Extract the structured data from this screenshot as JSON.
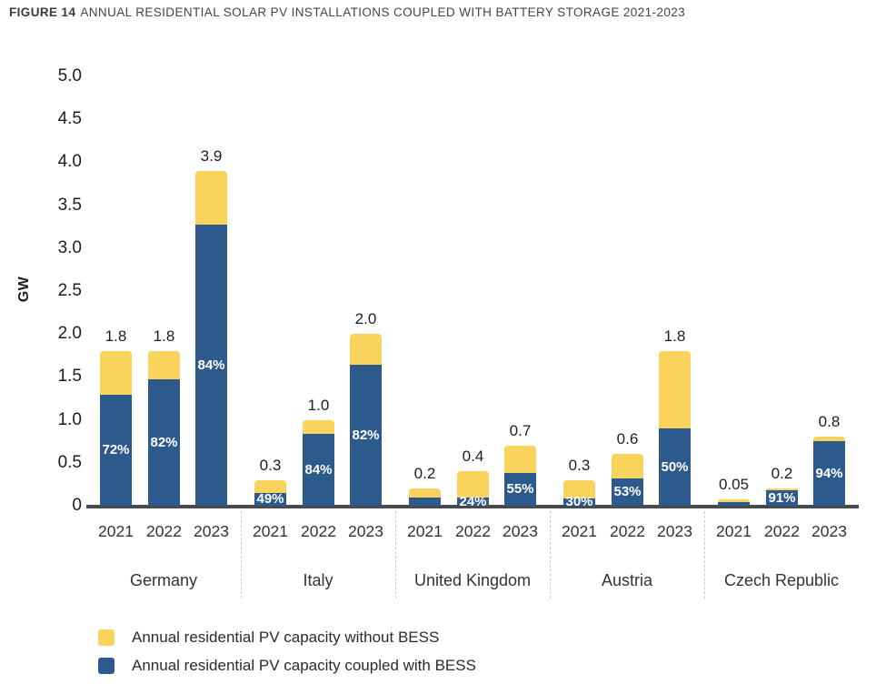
{
  "figure": {
    "label": "FIGURE 14",
    "title": "ANNUAL RESIDENTIAL SOLAR PV INSTALLATIONS COUPLED WITH BATTERY STORAGE 2021-2023"
  },
  "colors": {
    "without_bess_yellow": "#FAD35C",
    "with_bess_blue": "#2D5A8C",
    "axis_line": "#474B4F",
    "separator": "#C9CCCE",
    "tick_text": "#1D1D1B",
    "percent_text": "#FFFFFF"
  },
  "legend": {
    "items": [
      {
        "key": "without_bess",
        "label": "Annual residential PV capacity without BESS",
        "color": "#FAD35C"
      },
      {
        "key": "with_bess",
        "label": "Annual residential PV capacity coupled with BESS",
        "color": "#2D5A8C"
      }
    ]
  },
  "chart_data": {
    "type": "bar",
    "stacked": true,
    "title": "FIGURE 14 ANNUAL RESIDENTIAL SOLAR PV INSTALLATIONS COUPLED WITH BATTERY STORAGE 2021-2023",
    "ylabel": "GW",
    "unit": "GW",
    "ylim": [
      0,
      5
    ],
    "ytick_labels": [
      "5.0",
      "4.5",
      "4.0",
      "3.5",
      "3.0",
      "2.5",
      "2.0",
      "1.5",
      "1.0",
      "0.5",
      "0"
    ],
    "grid": false,
    "legend_position": "bottom-left",
    "series_order_note": "blue 'coupled with BESS' segment on bottom, yellow 'without BESS' segment on top; white % label = share coupled with BESS; number above bar = total GW",
    "groups": [
      {
        "country": "Germany",
        "bars": [
          {
            "year": "2021",
            "total_gw": 1.8,
            "total_label": "1.8",
            "coupled_pct": 72,
            "pct_label": "72%"
          },
          {
            "year": "2022",
            "total_gw": 1.8,
            "total_label": "1.8",
            "coupled_pct": 82,
            "pct_label": "82%"
          },
          {
            "year": "2023",
            "total_gw": 3.9,
            "total_label": "3.9",
            "coupled_pct": 84,
            "pct_label": "84%"
          }
        ]
      },
      {
        "country": "Italy",
        "bars": [
          {
            "year": "2021",
            "total_gw": 0.3,
            "total_label": "0.3",
            "coupled_pct": 49,
            "pct_label": "49%"
          },
          {
            "year": "2022",
            "total_gw": 1.0,
            "total_label": "1.0",
            "coupled_pct": 84,
            "pct_label": "84%"
          },
          {
            "year": "2023",
            "total_gw": 2.0,
            "total_label": "2.0",
            "coupled_pct": 82,
            "pct_label": "82%"
          }
        ]
      },
      {
        "country": "United Kingdom",
        "bars": [
          {
            "year": "2021",
            "total_gw": 0.2,
            "total_label": "0.2",
            "coupled_pct": null,
            "pct_label": "",
            "coupled_frac_visual": 0.45
          },
          {
            "year": "2022",
            "total_gw": 0.4,
            "total_label": "0.4",
            "coupled_pct": 24,
            "pct_label": "24%"
          },
          {
            "year": "2023",
            "total_gw": 0.7,
            "total_label": "0.7",
            "coupled_pct": 55,
            "pct_label": "55%"
          }
        ]
      },
      {
        "country": "Austria",
        "bars": [
          {
            "year": "2021",
            "total_gw": 0.3,
            "total_label": "0.3",
            "coupled_pct": 30,
            "pct_label": "30%"
          },
          {
            "year": "2022",
            "total_gw": 0.6,
            "total_label": "0.6",
            "coupled_pct": 53,
            "pct_label": "53%"
          },
          {
            "year": "2023",
            "total_gw": 1.8,
            "total_label": "1.8",
            "coupled_pct": 50,
            "pct_label": "50%"
          }
        ]
      },
      {
        "country": "Czech Republic",
        "bars": [
          {
            "year": "2021",
            "total_gw": 0.05,
            "total_label": "0.05",
            "coupled_pct": null,
            "pct_label": "",
            "coupled_frac_visual": 0.6
          },
          {
            "year": "2022",
            "total_gw": 0.2,
            "total_label": "0.2",
            "coupled_pct": 91,
            "pct_label": "91%"
          },
          {
            "year": "2023",
            "total_gw": 0.8,
            "total_label": "0.8",
            "coupled_pct": 94,
            "pct_label": "94%"
          }
        ]
      }
    ]
  }
}
